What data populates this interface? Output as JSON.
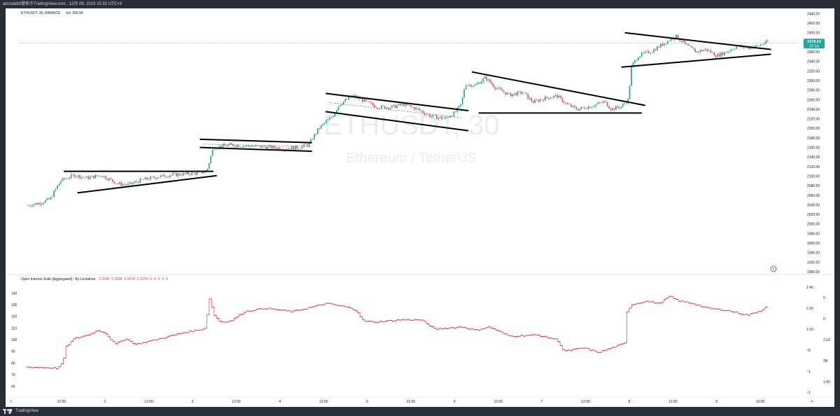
{
  "window": {
    "title": "abcsda83發佈于TradingView.com , 12月 09, 2023 15:32 UTC+8",
    "footer_brand": "TradingView"
  },
  "main_pane": {
    "symbol_line": "ETHUSDT, 30, BINANCE",
    "volume_label": "Vol",
    "volume_value": "390.94",
    "watermark_symbol": "ETHUSDT, 30",
    "watermark_name": "Ethereum / TetherUS",
    "price_badge_value": "2378.63",
    "price_badge_timer": "27:14",
    "colors": {
      "up": "#26a69a",
      "down": "#ef5350",
      "badge": "#26a69a",
      "trend_line": "#000000"
    }
  },
  "indicator_pane": {
    "title": "Open Interest Suite [Aggregated] - By Leviathan",
    "values": [
      "2.3240",
      "2.3288",
      "2.3278",
      "2.3278",
      "0",
      "0",
      "0",
      "0",
      "0"
    ],
    "left_axis_ticks": [
      "140",
      "130",
      "120",
      "110",
      "100",
      "90",
      "80",
      "70",
      "60"
    ],
    "right_axis_ticks": [
      "2.40",
      "0",
      "2.30",
      "0",
      "2.20",
      "2.10",
      "~0",
      "2B",
      "~1",
      "1.90",
      "~1"
    ],
    "line_color": "#f23645"
  },
  "x_axis": {
    "labels": [
      "12:00",
      "2",
      "12:00",
      "3",
      "12:00",
      "4",
      "12:00",
      "5",
      "12:00",
      "6",
      "12:00",
      "7",
      "12:00",
      "8",
      "12:00",
      "9",
      "12:00"
    ],
    "corner_left": "Z",
    "corner_right": "A"
  },
  "chart_data": {
    "type": "candlestick",
    "symbol": "ETHUSDT",
    "interval": "30",
    "exchange": "BINANCE",
    "yaxis_ticks": [
      2440,
      2420,
      2400,
      2380,
      2360,
      2340,
      2320,
      2300,
      2280,
      2260,
      2240,
      2220,
      2200,
      2180,
      2160,
      2140,
      2120,
      2100,
      2080,
      2060,
      2040,
      2020,
      2000,
      1980,
      1960,
      1940,
      1920,
      1900
    ],
    "yaxis_tick_labels": [
      "2440.00",
      "2420.00",
      "2400.00",
      "2380.00",
      "2360.00",
      "2340.00",
      "2320.00",
      "2300.00",
      "2280.00",
      "2260.00",
      "2240.00",
      "2220.00",
      "2200.00",
      "2180.00",
      "2160.00",
      "2140.00",
      "2120.00",
      "2100.00",
      "2080.00",
      "2060.00",
      "2040.00",
      "2020.00",
      "2000.00",
      "1980.00",
      "1960.00",
      "1940.00",
      "1920.00",
      "1900.00"
    ],
    "ylim": [
      1900,
      2445
    ],
    "last_price": 2378.63,
    "price_path": [
      [
        1,
        2038
      ],
      [
        3,
        2044
      ],
      [
        4.5,
        2052
      ],
      [
        6,
        2090
      ],
      [
        8,
        2102
      ],
      [
        10,
        2096
      ],
      [
        12,
        2102
      ],
      [
        14.5,
        2084
      ],
      [
        16,
        2082
      ],
      [
        18,
        2092
      ],
      [
        20,
        2098
      ],
      [
        22,
        2102
      ],
      [
        24,
        2104
      ],
      [
        26,
        2106
      ],
      [
        27.5,
        2110
      ],
      [
        28.5,
        2160
      ],
      [
        31,
        2165
      ],
      [
        34,
        2163
      ],
      [
        37,
        2160
      ],
      [
        39,
        2158
      ],
      [
        41,
        2160
      ],
      [
        42.5,
        2166
      ],
      [
        44,
        2200
      ],
      [
        46,
        2225
      ],
      [
        47,
        2250
      ],
      [
        49,
        2268
      ],
      [
        50.5,
        2258
      ],
      [
        52.5,
        2245
      ],
      [
        54.5,
        2244
      ],
      [
        56.5,
        2250
      ],
      [
        58.5,
        2240
      ],
      [
        60.5,
        2225
      ],
      [
        62.5,
        2220
      ],
      [
        64,
        2232
      ],
      [
        65,
        2252
      ],
      [
        65.5,
        2292
      ],
      [
        67,
        2290
      ],
      [
        68.5,
        2306
      ],
      [
        70,
        2285
      ],
      [
        72,
        2270
      ],
      [
        74,
        2275
      ],
      [
        75.5,
        2255
      ],
      [
        77,
        2262
      ],
      [
        79,
        2268
      ],
      [
        80.5,
        2250
      ],
      [
        82,
        2240
      ],
      [
        84,
        2246
      ],
      [
        86,
        2256
      ],
      [
        87,
        2240
      ],
      [
        88.5,
        2246
      ],
      [
        89.5,
        2260
      ],
      [
        90,
        2330
      ],
      [
        91,
        2352
      ],
      [
        93,
        2362
      ],
      [
        95,
        2380
      ],
      [
        96.5,
        2393
      ],
      [
        98,
        2374
      ],
      [
        99.5,
        2360
      ],
      [
        101,
        2365
      ],
      [
        102.5,
        2352
      ],
      [
        104,
        2360
      ],
      [
        105.5,
        2372
      ],
      [
        107,
        2368
      ],
      [
        108.5,
        2372
      ],
      [
        110,
        2381
      ]
    ],
    "trend_lines": [
      [
        [
          6.5,
          2110
        ],
        [
          28.5,
          2110
        ]
      ],
      [
        [
          8.5,
          2065
        ],
        [
          29,
          2101
        ]
      ],
      [
        [
          26.5,
          2177
        ],
        [
          43,
          2170
        ]
      ],
      [
        [
          26.5,
          2160
        ],
        [
          43,
          2152
        ]
      ],
      [
        [
          45,
          2273
        ],
        [
          66,
          2237
        ]
      ],
      [
        [
          45,
          2235
        ],
        [
          66,
          2195
        ]
      ],
      [
        [
          66.5,
          2318
        ],
        [
          92,
          2248
        ]
      ],
      [
        [
          67.5,
          2232
        ],
        [
          91.5,
          2232
        ]
      ],
      [
        [
          89,
          2400
        ],
        [
          110.5,
          2365
        ]
      ],
      [
        [
          88.5,
          2328
        ],
        [
          110.5,
          2355
        ]
      ]
    ],
    "dashed_guides": [
      [
        [
          27,
          2167
        ],
        [
          43,
          2162
        ]
      ],
      [
        [
          45.5,
          2254
        ],
        [
          65,
          2222
        ]
      ]
    ],
    "open_interest": [
      [
        1,
        76.5
      ],
      [
        4,
        76
      ],
      [
        5.5,
        75.5
      ],
      [
        6.3,
        80
      ],
      [
        6.8,
        94
      ],
      [
        8,
        101
      ],
      [
        10,
        104
      ],
      [
        11.5,
        108
      ],
      [
        12.5,
        106
      ],
      [
        14,
        96
      ],
      [
        15.5,
        101
      ],
      [
        17,
        96
      ],
      [
        20,
        100
      ],
      [
        24,
        106
      ],
      [
        26,
        108
      ],
      [
        27.3,
        110
      ],
      [
        27.6,
        126
      ],
      [
        28,
        138
      ],
      [
        28.4,
        122
      ],
      [
        29.5,
        115
      ],
      [
        31,
        116
      ],
      [
        33,
        124
      ],
      [
        36,
        127
      ],
      [
        40,
        124
      ],
      [
        43,
        128
      ],
      [
        45,
        131
      ],
      [
        47,
        129
      ],
      [
        48,
        128
      ],
      [
        49.5,
        125
      ],
      [
        50.5,
        116
      ],
      [
        52,
        115
      ],
      [
        56,
        117
      ],
      [
        59,
        117
      ],
      [
        61,
        109
      ],
      [
        65,
        111
      ],
      [
        67,
        108
      ],
      [
        69,
        111
      ],
      [
        72,
        103
      ],
      [
        76,
        104
      ],
      [
        79,
        100
      ],
      [
        80,
        90
      ],
      [
        83,
        93
      ],
      [
        85,
        89
      ],
      [
        88,
        95
      ],
      [
        89,
        97
      ],
      [
        89.3,
        125
      ],
      [
        90,
        130
      ],
      [
        92,
        133
      ],
      [
        94,
        131
      ],
      [
        95.5,
        137
      ],
      [
        97,
        133
      ],
      [
        99,
        131
      ],
      [
        101,
        127
      ],
      [
        104,
        125
      ],
      [
        107,
        121
      ],
      [
        109,
        125
      ],
      [
        110,
        130
      ]
    ]
  }
}
